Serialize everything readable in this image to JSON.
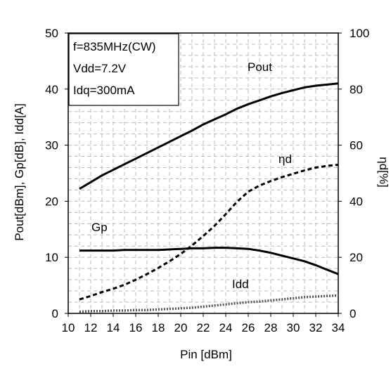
{
  "chart_data": {
    "type": "line",
    "xlabel": "Pin [dBm]",
    "ylabel_left": "Pout[dBm], Gp[dB], Idd[A]",
    "ylabel_right": "ηd[%]",
    "xlim": [
      10,
      34
    ],
    "ylim_left": [
      0,
      50
    ],
    "ylim_right": [
      0,
      100
    ],
    "x_ticks": [
      10,
      12,
      14,
      16,
      18,
      20,
      22,
      24,
      26,
      28,
      30,
      32,
      34
    ],
    "y_ticks_left": [
      0,
      10,
      20,
      30,
      40,
      50
    ],
    "y_ticks_right": [
      0,
      20,
      40,
      60,
      80,
      100
    ],
    "grid": "dashed",
    "conditions": [
      "f=835MHz(CW)",
      "Vdd=7.2V",
      "Idq=300mA"
    ],
    "x": [
      11,
      12,
      13,
      14,
      15,
      16,
      17,
      18,
      19,
      20,
      21,
      22,
      23,
      24,
      25,
      26,
      27,
      28,
      29,
      30,
      31,
      32,
      33,
      34
    ],
    "series": [
      {
        "name": "Pout",
        "axis": "left",
        "style": "solid",
        "color": "#000000",
        "values": [
          22.2,
          23.4,
          24.6,
          25.6,
          26.6,
          27.6,
          28.6,
          29.6,
          30.6,
          31.6,
          32.6,
          33.7,
          34.6,
          35.5,
          36.5,
          37.3,
          38.0,
          38.7,
          39.3,
          39.8,
          40.3,
          40.6,
          40.8,
          41.0
        ]
      },
      {
        "name": "Gp",
        "axis": "left",
        "style": "solid",
        "color": "#000000",
        "values": [
          11.2,
          11.2,
          11.2,
          11.2,
          11.3,
          11.3,
          11.3,
          11.3,
          11.4,
          11.5,
          11.6,
          11.6,
          11.7,
          11.7,
          11.6,
          11.5,
          11.2,
          10.8,
          10.3,
          9.8,
          9.3,
          8.6,
          7.8,
          7.0
        ]
      },
      {
        "name": "ηd",
        "axis": "right",
        "style": "dashed",
        "color": "#000000",
        "values": [
          5.0,
          6.2,
          7.6,
          8.8,
          10.2,
          12.0,
          14.0,
          16.2,
          18.6,
          21.2,
          24.2,
          27.6,
          31.2,
          35.4,
          39.8,
          43.4,
          45.6,
          47.2,
          48.6,
          49.8,
          51.0,
          52.0,
          52.6,
          53.0
        ]
      },
      {
        "name": "Idd",
        "axis": "left",
        "style": "dotted",
        "color": "#555555",
        "values": [
          0.3,
          0.4,
          0.4,
          0.5,
          0.5,
          0.6,
          0.6,
          0.7,
          0.8,
          0.9,
          1.0,
          1.2,
          1.4,
          1.6,
          1.8,
          2.0,
          2.1,
          2.3,
          2.5,
          2.7,
          2.9,
          3.0,
          3.1,
          3.2
        ]
      }
    ]
  }
}
